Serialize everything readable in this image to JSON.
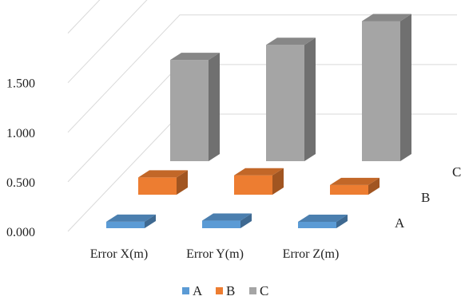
{
  "chart_data": {
    "type": "bar",
    "variant": "3d-column",
    "title": "",
    "xlabel": "",
    "ylabel": "",
    "categories": [
      "Error X(m)",
      "Error Y(m)",
      "Error Z(m)"
    ],
    "series": [
      {
        "name": "A",
        "values": [
          0.06,
          0.07,
          0.05
        ],
        "color": "#5B9BD5"
      },
      {
        "name": "B",
        "values": [
          0.16,
          0.18,
          0.09
        ],
        "color": "#ED7D31"
      },
      {
        "name": "C",
        "values": [
          0.94,
          1.08,
          1.3
        ],
        "color": "#A5A5A5"
      }
    ],
    "y_ticks": [
      "0.000",
      "0.500",
      "1.000",
      "1.500"
    ],
    "ylim": [
      0,
      2
    ],
    "grid": true,
    "legend": "bottom",
    "depth_labels": [
      "A",
      "B",
      "C"
    ]
  }
}
